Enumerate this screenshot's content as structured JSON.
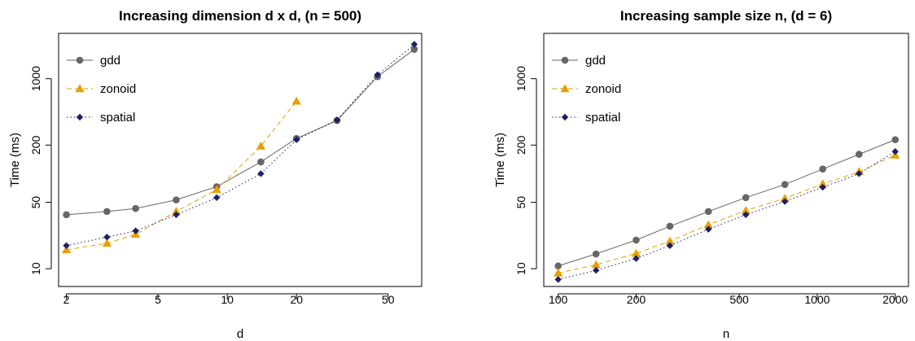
{
  "chart_data": [
    {
      "type": "line",
      "title": "Increasing dimension d x d, (n = 500)",
      "xlabel": "d",
      "ylabel": "Time (ms)",
      "xscale": "log",
      "yscale": "log",
      "xlim": [
        1.85,
        70
      ],
      "ylim": [
        6.5,
        3000
      ],
      "xticks": [
        2,
        5,
        10,
        20,
        50
      ],
      "yticks": [
        10,
        50,
        200,
        1000
      ],
      "grid": false,
      "legend_position": "top-left",
      "series": [
        {
          "name": "gdd",
          "color": "#666666",
          "marker": "circle",
          "dash": "solid",
          "x": [
            2,
            3,
            4,
            6,
            9,
            14,
            20,
            30,
            45,
            65
          ],
          "y": [
            37,
            40,
            43,
            53,
            73,
            133,
            235,
            363,
            1050,
            2040
          ]
        },
        {
          "name": "zonoid",
          "color": "#E69F00",
          "marker": "triangle",
          "dash": "dashed",
          "x": [
            2,
            3,
            4,
            6,
            9,
            14,
            20
          ],
          "y": [
            15.8,
            18.5,
            23,
            40,
            68,
            195,
            580
          ]
        },
        {
          "name": "spatial",
          "color": "#1F1F66",
          "marker": "diamond",
          "dash": "dotted",
          "x": [
            2,
            3,
            4,
            6,
            9,
            14,
            20,
            30,
            45,
            65
          ],
          "y": [
            17.5,
            21.5,
            25,
            37,
            56,
            100,
            228,
            368,
            1100,
            2300
          ]
        }
      ]
    },
    {
      "type": "line",
      "title": "Increasing sample size n, (d = 6)",
      "xlabel": "n",
      "ylabel": "Time (ms)",
      "xscale": "log",
      "yscale": "log",
      "xlim": [
        88,
        2250
      ],
      "ylim": [
        6.5,
        3000
      ],
      "xticks": [
        100,
        200,
        500,
        1000,
        2000
      ],
      "yticks": [
        10,
        50,
        200,
        1000
      ],
      "grid": false,
      "legend_position": "top-left",
      "series": [
        {
          "name": "gdd",
          "color": "#666666",
          "marker": "circle",
          "dash": "solid",
          "x": [
            100,
            140,
            200,
            270,
            380,
            530,
            750,
            1050,
            1450,
            2000
          ],
          "y": [
            10.7,
            14.3,
            20,
            28,
            40,
            56,
            77,
            112,
            160,
            228
          ]
        },
        {
          "name": "zonoid",
          "color": "#E69F00",
          "marker": "triangle",
          "dash": "dashed",
          "x": [
            100,
            140,
            200,
            270,
            380,
            530,
            750,
            1050,
            1450,
            2000
          ],
          "y": [
            9,
            11,
            14.5,
            19.5,
            29,
            41,
            55,
            78,
            105,
            157
          ]
        },
        {
          "name": "spatial",
          "color": "#1F1F66",
          "marker": "diamond",
          "dash": "dotted",
          "x": [
            100,
            140,
            200,
            270,
            380,
            530,
            750,
            1050,
            1450,
            2000
          ],
          "y": [
            7.7,
            9.6,
            12.8,
            17.5,
            26,
            37,
            51,
            72,
            100,
            171
          ]
        }
      ]
    }
  ]
}
